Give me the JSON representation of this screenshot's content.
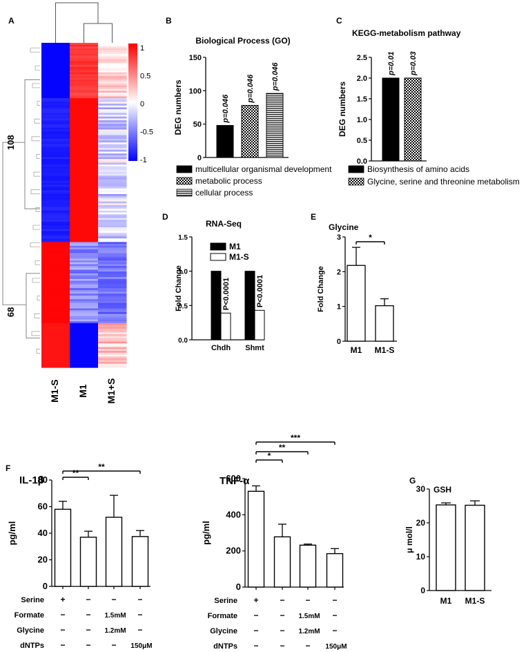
{
  "panels": {
    "A": "A",
    "B": "B",
    "C": "C",
    "D": "D",
    "E": "E",
    "F": "F",
    "G": "G"
  },
  "chart_data": [
    {
      "panel": "A",
      "type": "heatmap",
      "columns": [
        "M1-S",
        "M1",
        "M1+S"
      ],
      "cluster_labels": [
        "108",
        "68"
      ],
      "colorbar_ticks": [
        "1",
        "0.5",
        "0",
        "-0.5",
        "-1"
      ],
      "colorbar_range": [
        -1,
        1
      ],
      "colors": {
        "high": "#ff0000",
        "mid": "#ffffff",
        "low": "#0000ff"
      }
    },
    {
      "panel": "B",
      "type": "bar",
      "title": "Biological Process (GO)",
      "ylabel": "DEG numbers",
      "ylim": [
        0,
        150
      ],
      "yticks": [
        "0",
        "50",
        "100",
        "150"
      ],
      "categories": [
        "multicellular organismal development",
        "metabolic process",
        "cellular process"
      ],
      "values": [
        48,
        78,
        96
      ],
      "annotations": [
        "p=0.046",
        "p=0.046",
        "p=0.046"
      ],
      "patterns": [
        "solid",
        "checker",
        "hstripe"
      ]
    },
    {
      "panel": "C",
      "type": "bar",
      "title": "KEGG-metabolism pathway",
      "ylabel": "DEG numbers",
      "ylim": [
        0,
        2.5
      ],
      "yticks": [
        "0.0",
        "0.5",
        "1.0",
        "1.5",
        "2.0",
        "2.5"
      ],
      "categories": [
        "Biosynthesis of amino acids",
        "Glycine, serine and threonine metabolism"
      ],
      "values": [
        2,
        2
      ],
      "annotations": [
        "p=0.01",
        "p=0.03"
      ],
      "patterns": [
        "solid",
        "checker"
      ]
    },
    {
      "panel": "D",
      "type": "bar",
      "title": "RNA-Seq",
      "ylabel": "Fold  Change",
      "ylim": [
        0,
        1.5
      ],
      "yticks": [
        "0.0",
        "0.5",
        "1.0",
        "1.5"
      ],
      "categories": [
        "Chdh",
        "Shmt"
      ],
      "series": [
        {
          "name": "M1",
          "values": [
            1.0,
            1.0
          ]
        },
        {
          "name": "M1-S",
          "values": [
            0.39,
            0.43
          ]
        }
      ],
      "annotations": [
        "P<0.0001",
        "P<0.0001"
      ]
    },
    {
      "panel": "E",
      "type": "bar",
      "title": "Glycine",
      "ylabel": "Fold  Change",
      "ylim": [
        0,
        3
      ],
      "yticks": [
        "0",
        "1",
        "2",
        "3"
      ],
      "categories": [
        "M1",
        "M1-S"
      ],
      "values": [
        2.18,
        1.02
      ],
      "errors": [
        0.52,
        0.2
      ],
      "significance": [
        {
          "from": 0,
          "to": 1,
          "label": "*"
        }
      ]
    },
    {
      "panel": "F1",
      "type": "bar",
      "title": "IL-1β",
      "ylabel": "pg/ml",
      "ylim": [
        0,
        80
      ],
      "yticks": [
        "0",
        "20",
        "40",
        "60",
        "80"
      ],
      "values": [
        58,
        37,
        52,
        37.5
      ],
      "errors": [
        6,
        4.5,
        16.5,
        4.5
      ],
      "significance": [
        {
          "from": 0,
          "to": 1,
          "label": "**"
        },
        {
          "from": 0,
          "to": 3,
          "label": "**"
        }
      ],
      "conditions": [
        {
          "name": "Serine",
          "values": [
            "+",
            "−",
            "−",
            "−"
          ]
        },
        {
          "name": "Formate",
          "values": [
            "−",
            "−",
            "1.5mM",
            "−"
          ]
        },
        {
          "name": "Glycine",
          "values": [
            "−",
            "−",
            "1.2mM",
            "−"
          ]
        },
        {
          "name": "dNTPs",
          "values": [
            "−",
            "−",
            "−",
            "150μM"
          ]
        }
      ]
    },
    {
      "panel": "F2",
      "type": "bar",
      "title": "TNF-α",
      "ylabel": "pg/ml",
      "ylim": [
        0,
        600
      ],
      "yticks": [
        "0",
        "200",
        "400",
        "600"
      ],
      "values": [
        530,
        278,
        232,
        185
      ],
      "errors": [
        30,
        70,
        6,
        28
      ],
      "significance": [
        {
          "from": 0,
          "to": 1,
          "label": "*"
        },
        {
          "from": 0,
          "to": 2,
          "label": "**"
        },
        {
          "from": 0,
          "to": 3,
          "label": "***"
        }
      ],
      "conditions": [
        {
          "name": "Serine",
          "values": [
            "+",
            "−",
            "−",
            "−"
          ]
        },
        {
          "name": "Formate",
          "values": [
            "−",
            "−",
            "1.5mM",
            "−"
          ]
        },
        {
          "name": "Glycine",
          "values": [
            "−",
            "−",
            "1.2mM",
            "−"
          ]
        },
        {
          "name": "dNTPs",
          "values": [
            "−",
            "−",
            "−",
            "150μM"
          ]
        }
      ]
    },
    {
      "panel": "G",
      "type": "bar",
      "title": "GSH",
      "ylabel": "μ mol/l",
      "ylim": [
        0,
        30
      ],
      "yticks": [
        "0",
        "10",
        "20",
        "30"
      ],
      "categories": [
        "M1",
        "M1-S"
      ],
      "values": [
        25.3,
        25.2
      ],
      "errors": [
        0.6,
        1.3
      ]
    }
  ]
}
